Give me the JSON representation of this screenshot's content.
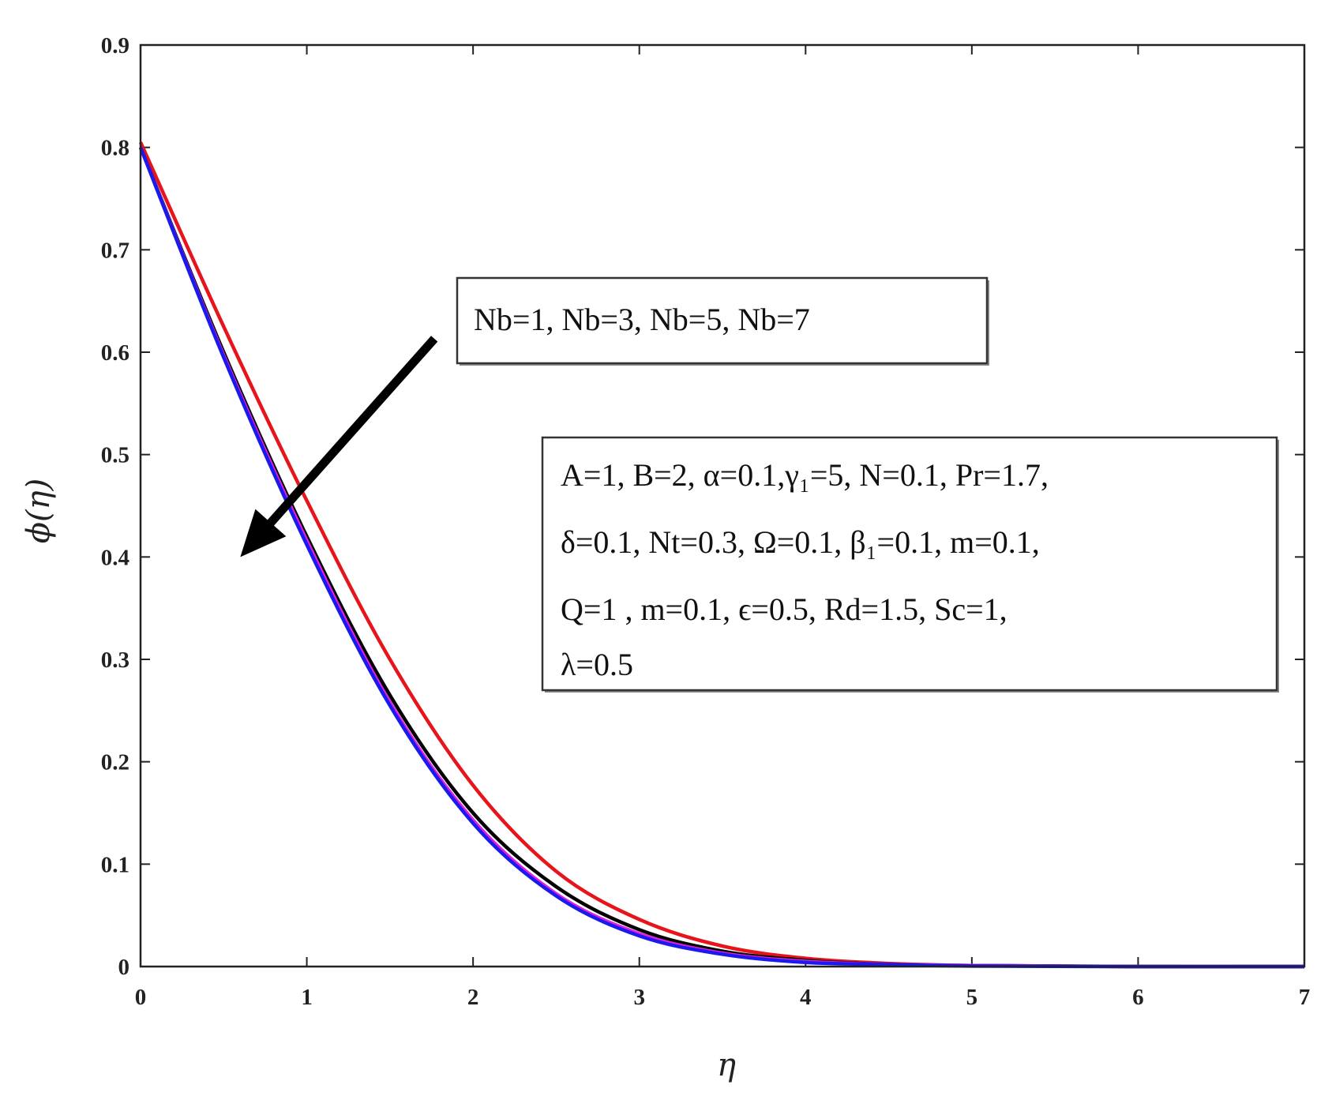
{
  "chart_data": {
    "type": "line",
    "xlabel": "η",
    "ylabel": "ϕ(η)",
    "xlim": [
      0,
      7
    ],
    "ylim": [
      0,
      0.9
    ],
    "xticks": [
      "0",
      "1",
      "2",
      "3",
      "4",
      "5",
      "6",
      "7"
    ],
    "yticks": [
      "0",
      "0.1",
      "0.2",
      "0.3",
      "0.4",
      "0.5",
      "0.6",
      "0.7",
      "0.8",
      "0.9"
    ],
    "grid": false,
    "series": [
      {
        "color": "#e8141c",
        "x": [
          0,
          0.5,
          1,
          1.5,
          2,
          2.5,
          3,
          3.5,
          4,
          4.5,
          5,
          6,
          7
        ],
        "y": [
          0.805,
          0.625,
          0.455,
          0.3,
          0.177,
          0.093,
          0.046,
          0.02,
          0.008,
          0.003,
          0.001,
          0,
          0
        ]
      },
      {
        "color": "#000000",
        "x": [
          0,
          0.5,
          1,
          1.5,
          2,
          2.5,
          3,
          3.5,
          4,
          4.5,
          5,
          6,
          7
        ],
        "y": [
          0.8,
          0.6,
          0.42,
          0.265,
          0.15,
          0.078,
          0.036,
          0.015,
          0.006,
          0.002,
          0.001,
          0,
          0
        ]
      },
      {
        "color": "#e020e0",
        "x": [
          0,
          0.5,
          1,
          1.5,
          2,
          2.5,
          3,
          3.5,
          4,
          4.5,
          5,
          6,
          7
        ],
        "y": [
          0.8,
          0.597,
          0.416,
          0.258,
          0.143,
          0.071,
          0.032,
          0.013,
          0.005,
          0.002,
          0.001,
          0,
          0
        ]
      },
      {
        "color": "#1a1aee",
        "x": [
          0,
          0.5,
          1,
          1.5,
          2,
          2.5,
          3,
          3.5,
          4,
          4.5,
          5,
          6,
          7
        ],
        "y": [
          0.8,
          0.595,
          0.412,
          0.255,
          0.14,
          0.069,
          0.03,
          0.012,
          0.004,
          0.002,
          0.0005,
          0,
          0
        ]
      }
    ],
    "annotations": {
      "arrow_label": "Nb=1, Nb=3, Nb=5, Nb=7",
      "arrow_from": [
        1.75,
        0.61
      ],
      "arrow_to": [
        0.6,
        0.4
      ],
      "params": [
        "A=1, B=2, α=0.1,γ₁=5, N=0.1, Pr=1.7,",
        "δ=0.1, Nt=0.3, Ω=0.1, β₁=0.1, m=0.1,",
        "Q=1 ,  m=0.1,  ϵ=0.5,  Rd=1.5,  Sc=1,",
        "λ=0.5"
      ]
    }
  }
}
